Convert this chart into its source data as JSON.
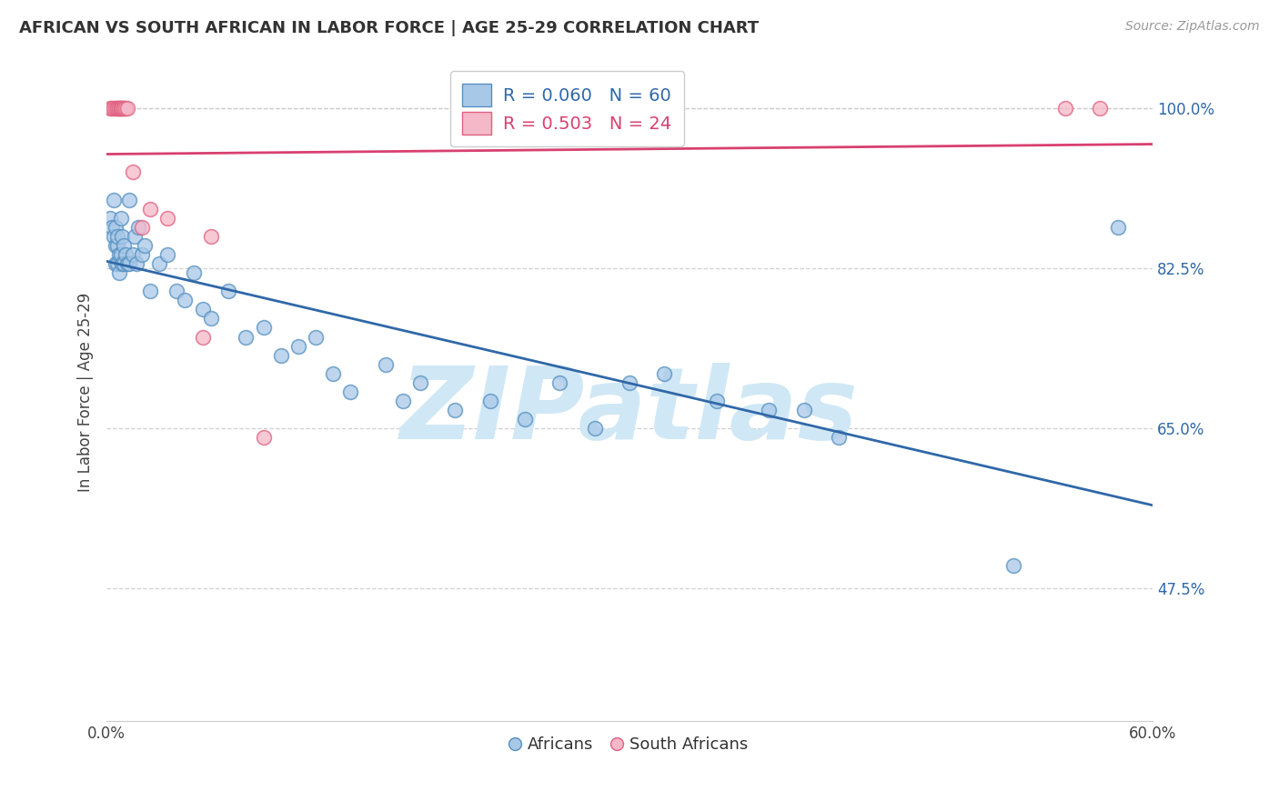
{
  "title": "AFRICAN VS SOUTH AFRICAN IN LABOR FORCE | AGE 25-29 CORRELATION CHART",
  "source": "Source: ZipAtlas.com",
  "ylabel": "In Labor Force | Age 25-29",
  "xlim": [
    0.0,
    0.6
  ],
  "ylim": [
    0.33,
    1.05
  ],
  "r_africans": 0.06,
  "n_africans": 60,
  "r_south_africans": 0.503,
  "n_south_africans": 24,
  "legend_labels": [
    "Africans",
    "South Africans"
  ],
  "blue_color": "#a8c8e8",
  "pink_color": "#f5b8c8",
  "blue_edge_color": "#5590c0",
  "pink_edge_color": "#e06080",
  "blue_line_color": "#3068a8",
  "pink_line_color": "#d84070",
  "blue_label_color": "#3068a8",
  "pink_label_color": "#d84070",
  "background_color": "#ffffff",
  "grid_color": "#cccccc",
  "watermark_text": "ZIPatlas",
  "watermark_color": "#d0e8f5",
  "y_ticks": [
    0.475,
    0.65,
    0.825,
    1.0
  ],
  "y_tick_labels": [
    "47.5%",
    "65.0%",
    "82.5%",
    "100.0%"
  ],
  "africans_x": [
    0.002,
    0.003,
    0.004,
    0.004,
    0.005,
    0.005,
    0.005,
    0.006,
    0.006,
    0.006,
    0.007,
    0.007,
    0.008,
    0.008,
    0.009,
    0.009,
    0.01,
    0.01,
    0.011,
    0.012,
    0.013,
    0.013,
    0.015,
    0.016,
    0.017,
    0.018,
    0.02,
    0.022,
    0.025,
    0.03,
    0.035,
    0.04,
    0.045,
    0.05,
    0.055,
    0.06,
    0.07,
    0.08,
    0.09,
    0.1,
    0.11,
    0.12,
    0.13,
    0.14,
    0.16,
    0.17,
    0.18,
    0.2,
    0.22,
    0.24,
    0.26,
    0.28,
    0.3,
    0.32,
    0.35,
    0.38,
    0.4,
    0.42,
    0.52,
    0.58
  ],
  "africans_y": [
    0.88,
    0.87,
    0.86,
    0.9,
    0.85,
    0.83,
    0.87,
    0.85,
    0.83,
    0.86,
    0.84,
    0.82,
    0.88,
    0.84,
    0.83,
    0.86,
    0.85,
    0.83,
    0.84,
    0.83,
    0.9,
    0.83,
    0.84,
    0.86,
    0.83,
    0.87,
    0.84,
    0.85,
    0.8,
    0.83,
    0.84,
    0.8,
    0.79,
    0.82,
    0.78,
    0.77,
    0.8,
    0.75,
    0.76,
    0.73,
    0.74,
    0.75,
    0.71,
    0.69,
    0.72,
    0.68,
    0.7,
    0.67,
    0.68,
    0.66,
    0.7,
    0.65,
    0.7,
    0.71,
    0.68,
    0.67,
    0.67,
    0.64,
    0.5,
    0.87
  ],
  "south_africans_x": [
    0.002,
    0.003,
    0.004,
    0.005,
    0.006,
    0.006,
    0.007,
    0.007,
    0.008,
    0.008,
    0.009,
    0.01,
    0.01,
    0.011,
    0.012,
    0.015,
    0.02,
    0.025,
    0.035,
    0.055,
    0.06,
    0.09,
    0.55,
    0.57
  ],
  "south_africans_y": [
    1.0,
    1.0,
    1.0,
    1.0,
    1.0,
    1.0,
    1.0,
    1.0,
    1.0,
    1.0,
    1.0,
    1.0,
    1.0,
    1.0,
    1.0,
    0.93,
    0.87,
    0.89,
    0.88,
    0.75,
    0.86,
    0.64,
    1.0,
    1.0
  ]
}
